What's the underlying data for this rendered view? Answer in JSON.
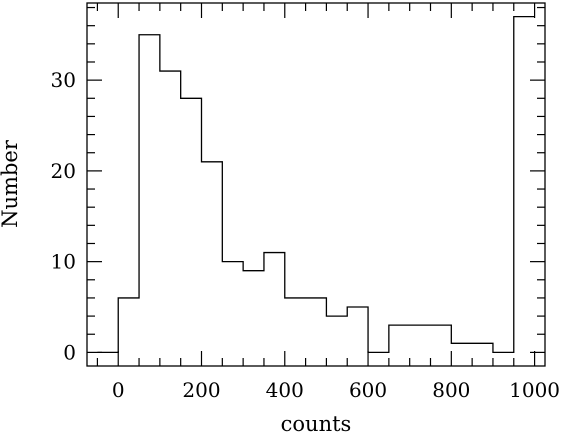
{
  "chart_data": {
    "type": "bar",
    "style": "step-histogram",
    "xlabel": "counts",
    "ylabel": "Number",
    "xlim": [
      -75,
      1025
    ],
    "ylim": [
      -1.5,
      38.5
    ],
    "grid": false,
    "bins": [
      {
        "x0": -50,
        "x1": 0,
        "value": 0
      },
      {
        "x0": 0,
        "x1": 50,
        "value": 6
      },
      {
        "x0": 50,
        "x1": 100,
        "value": 35
      },
      {
        "x0": 100,
        "x1": 150,
        "value": 31
      },
      {
        "x0": 150,
        "x1": 200,
        "value": 28
      },
      {
        "x0": 200,
        "x1": 250,
        "value": 21
      },
      {
        "x0": 250,
        "x1": 300,
        "value": 10
      },
      {
        "x0": 300,
        "x1": 350,
        "value": 9
      },
      {
        "x0": 350,
        "x1": 400,
        "value": 11
      },
      {
        "x0": 400,
        "x1": 450,
        "value": 6
      },
      {
        "x0": 450,
        "x1": 500,
        "value": 6
      },
      {
        "x0": 500,
        "x1": 550,
        "value": 4
      },
      {
        "x0": 550,
        "x1": 600,
        "value": 5
      },
      {
        "x0": 600,
        "x1": 650,
        "value": 0
      },
      {
        "x0": 650,
        "x1": 700,
        "value": 3
      },
      {
        "x0": 700,
        "x1": 750,
        "value": 3
      },
      {
        "x0": 750,
        "x1": 800,
        "value": 3
      },
      {
        "x0": 800,
        "x1": 850,
        "value": 1
      },
      {
        "x0": 850,
        "x1": 900,
        "value": 1
      },
      {
        "x0": 900,
        "x1": 950,
        "value": 0
      },
      {
        "x0": 950,
        "x1": 1000,
        "value": 37
      }
    ],
    "x_ticks_major": [
      0,
      200,
      400,
      600,
      800,
      1000
    ],
    "x_tick_labels": [
      "0",
      "200",
      "400",
      "600",
      "800",
      "1000"
    ],
    "y_ticks_major": [
      0,
      10,
      20,
      30
    ],
    "y_tick_labels": [
      "0",
      "10",
      "20",
      "30"
    ]
  }
}
